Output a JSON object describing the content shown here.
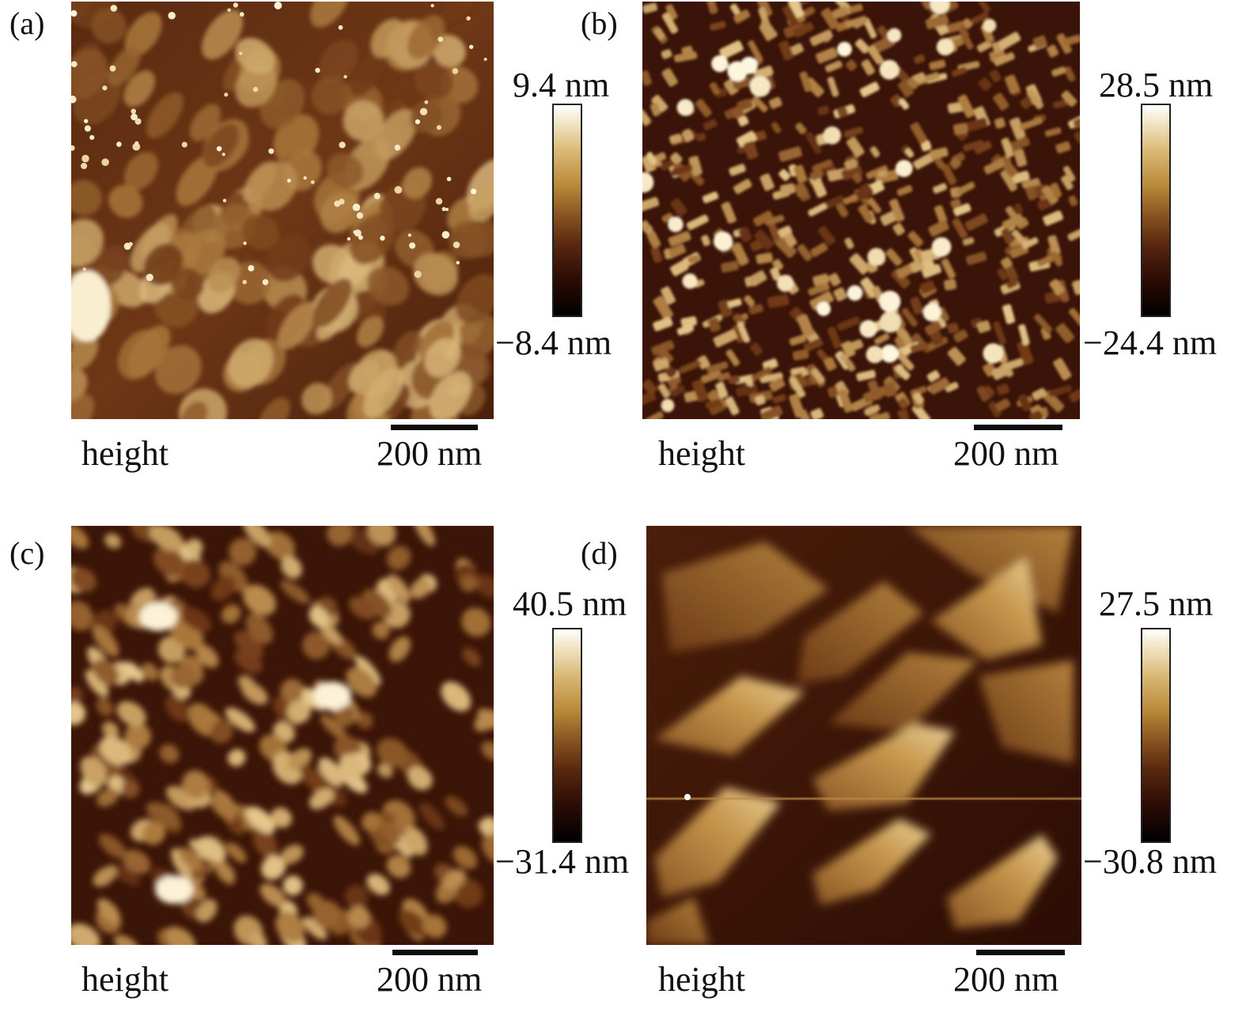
{
  "panels": [
    {
      "label": "(a)",
      "axis_label": "height",
      "scale_label": "200 nm",
      "max_label": "9.4 nm",
      "min_label": "−8.4 nm",
      "morphology": "small-grains-with-bright-dots"
    },
    {
      "label": "(b)",
      "axis_label": "height",
      "scale_label": "200 nm",
      "max_label": "28.5 nm",
      "min_label": "−24.4 nm",
      "morphology": "dense-rods"
    },
    {
      "label": "(c)",
      "axis_label": "height",
      "scale_label": "200 nm",
      "max_label": "40.5 nm",
      "min_label": "−31.4 nm",
      "morphology": "coarse-grains"
    },
    {
      "label": "(d)",
      "axis_label": "height",
      "scale_label": "200 nm",
      "max_label": "27.5 nm",
      "min_label": "−30.8 nm",
      "morphology": "large-triangular-plates"
    }
  ],
  "colors": {
    "dark": "#1a0603",
    "mid": "#6b3214",
    "light": "#c99a4e",
    "bright": "#fff3d6"
  }
}
